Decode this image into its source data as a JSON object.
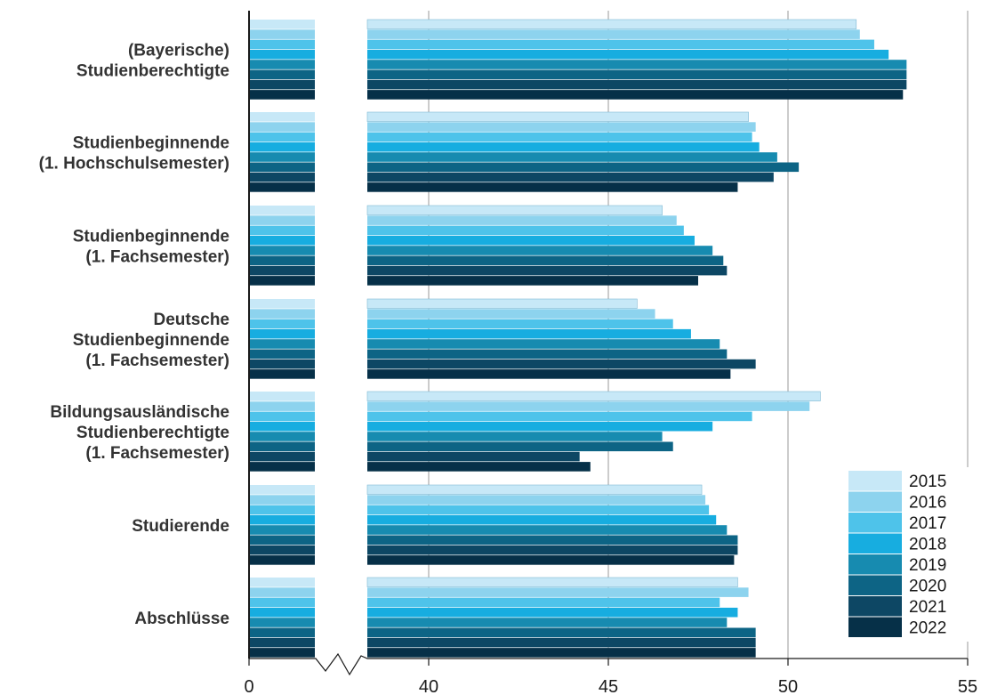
{
  "chart_data": {
    "type": "bar",
    "orientation": "horizontal",
    "axis_break": true,
    "categories": [
      [
        "(Bayerische)",
        "Studienberechtigte"
      ],
      [
        "Studienbeginnende",
        "(1. Hochschulsemester)"
      ],
      [
        "Studienbeginnende",
        "(1. Fachsemester)"
      ],
      [
        "Deutsche",
        "Studienbeginnende",
        "(1. Fachsemester)"
      ],
      [
        "Bildungsausländische",
        "Studienberechtigte",
        "(1. Fachsemester)"
      ],
      [
        "Studierende"
      ],
      [
        "Abschlüsse"
      ]
    ],
    "xticks": [
      "0",
      "40",
      "45",
      "50",
      "55"
    ],
    "xlim": [
      38.3,
      55
    ],
    "grid": true,
    "legend_position": "bottom-right",
    "series": [
      {
        "name": "2015",
        "color": "#c7e8f7",
        "values": [
          51.9,
          48.9,
          46.5,
          45.8,
          50.9,
          47.6,
          48.6
        ]
      },
      {
        "name": "2016",
        "color": "#8dd3ee",
        "values": [
          52.0,
          49.1,
          46.9,
          46.3,
          50.6,
          47.7,
          48.9
        ]
      },
      {
        "name": "2017",
        "color": "#4ec3ea",
        "values": [
          52.4,
          49.0,
          47.1,
          46.8,
          49.0,
          47.8,
          48.1
        ]
      },
      {
        "name": "2018",
        "color": "#17ade0",
        "values": [
          52.8,
          49.2,
          47.4,
          47.3,
          47.9,
          48.0,
          48.6
        ]
      },
      {
        "name": "2019",
        "color": "#178bb0",
        "values": [
          53.3,
          49.7,
          47.9,
          48.1,
          46.5,
          48.3,
          48.3
        ]
      },
      {
        "name": "2020",
        "color": "#0d6485",
        "values": [
          53.3,
          50.3,
          48.2,
          48.3,
          46.8,
          48.6,
          49.1
        ]
      },
      {
        "name": "2021",
        "color": "#0d4764",
        "values": [
          53.3,
          49.6,
          48.3,
          49.1,
          44.2,
          48.6,
          49.1
        ]
      },
      {
        "name": "2022",
        "color": "#063048",
        "values": [
          53.2,
          48.6,
          47.5,
          48.4,
          44.5,
          48.5,
          49.1
        ]
      }
    ]
  }
}
